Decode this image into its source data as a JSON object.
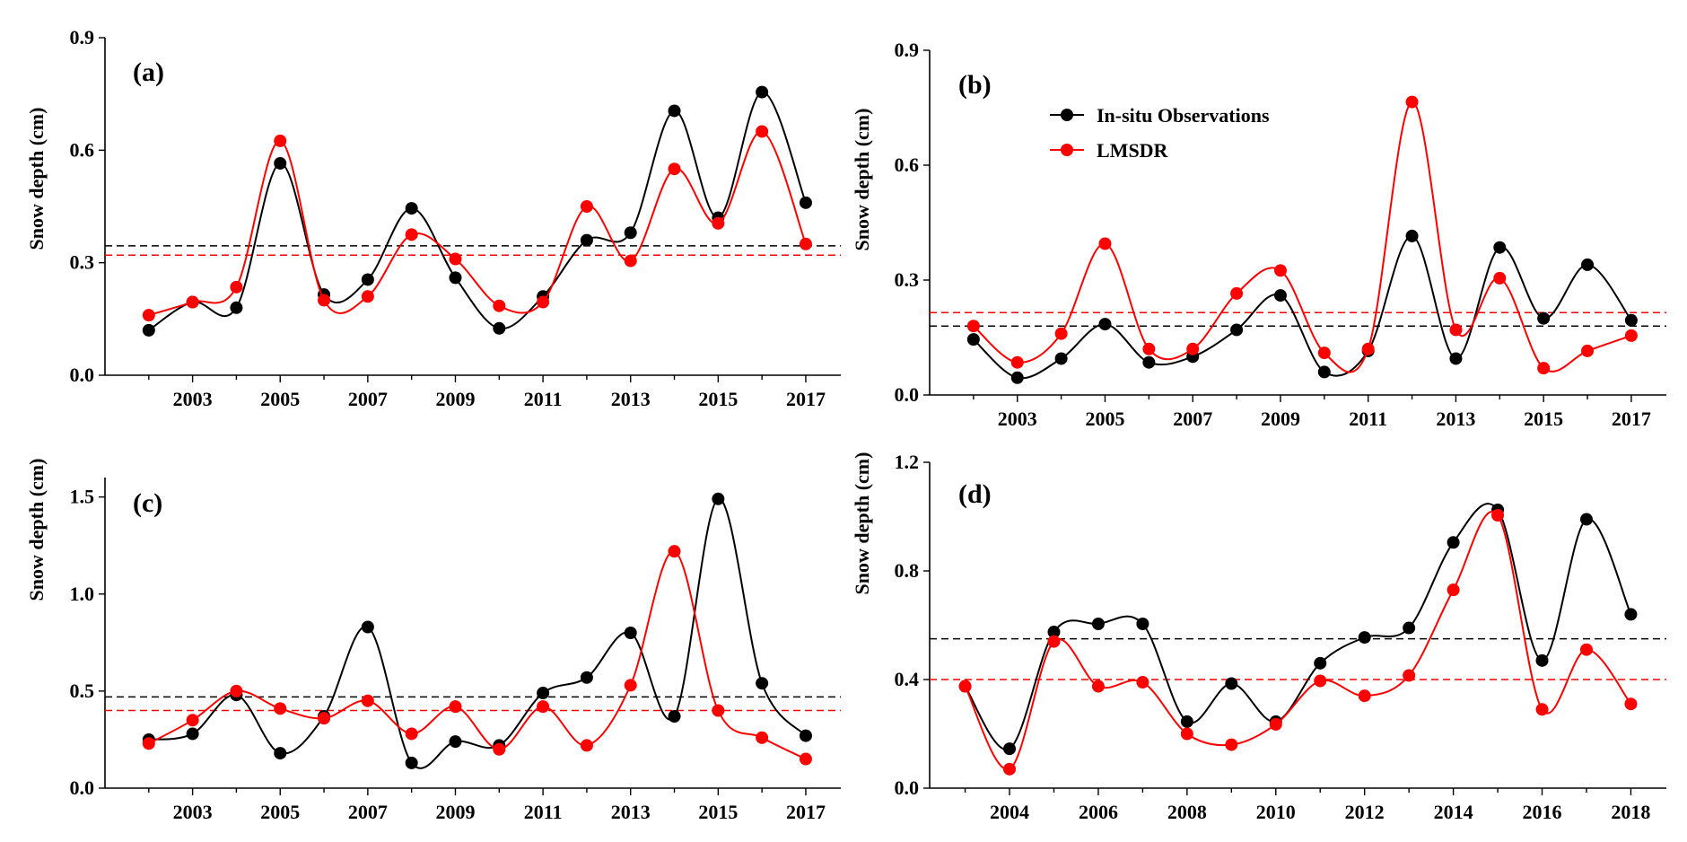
{
  "colors": {
    "observations": "#000000",
    "lmsdr": "#ff0000"
  },
  "legend": {
    "observations_label": "In-situ Observations",
    "lmsdr_label": "LMSDR"
  },
  "chart_data": [
    {
      "type": "line",
      "panel_label": "(a)",
      "ylabel": "Snow depth (cm)",
      "xlabel": "",
      "x": [
        2002,
        2003,
        2004,
        2005,
        2006,
        2007,
        2008,
        2009,
        2010,
        2011,
        2012,
        2013,
        2014,
        2015,
        2016,
        2017
      ],
      "xlim": [
        2001,
        2017.8
      ],
      "xticks": [
        2003,
        2005,
        2007,
        2009,
        2011,
        2013,
        2015,
        2017
      ],
      "xtick_labels": [
        "2003",
        "2005",
        "2007",
        "2009",
        "2011",
        "2013",
        "2015",
        "2017"
      ],
      "ylim": [
        0,
        0.9
      ],
      "yticks": [
        0,
        0.3,
        0.6,
        0.9
      ],
      "ytick_labels": [
        "0.0",
        "0.3",
        "0.6",
        "0.9"
      ],
      "series": [
        {
          "name": "In-situ Observations",
          "color": "#000000",
          "values": [
            0.12,
            0.195,
            0.18,
            0.565,
            0.215,
            0.255,
            0.445,
            0.26,
            0.125,
            0.21,
            0.36,
            0.38,
            0.705,
            0.42,
            0.755,
            0.46
          ]
        },
        {
          "name": "LMSDR",
          "color": "#ff0000",
          "values": [
            0.16,
            0.195,
            0.235,
            0.625,
            0.2,
            0.21,
            0.375,
            0.31,
            0.185,
            0.195,
            0.45,
            0.305,
            0.55,
            0.405,
            0.65,
            0.35
          ]
        }
      ],
      "reference_lines": [
        {
          "name": "In-situ Observations mean",
          "color": "#000000",
          "value": 0.345
        },
        {
          "name": "LMSDR mean",
          "color": "#ff0000",
          "value": 0.32
        }
      ]
    },
    {
      "type": "line",
      "panel_label": "(b)",
      "ylabel": "Snow depth (cm)",
      "xlabel": "",
      "x": [
        2002,
        2003,
        2004,
        2005,
        2006,
        2007,
        2008,
        2009,
        2010,
        2011,
        2012,
        2013,
        2014,
        2015,
        2016,
        2017
      ],
      "xlim": [
        2001,
        2017.8
      ],
      "xticks": [
        2003,
        2005,
        2007,
        2009,
        2011,
        2013,
        2015,
        2017
      ],
      "xtick_labels": [
        "2003",
        "2005",
        "2007",
        "2009",
        "2011",
        "2013",
        "2015",
        "2017"
      ],
      "ylim": [
        0,
        0.9
      ],
      "yticks": [
        0,
        0.3,
        0.6,
        0.9
      ],
      "ytick_labels": [
        "0.0",
        "0.3",
        "0.6",
        "0.9"
      ],
      "legend_position": "top-left",
      "series": [
        {
          "name": "In-situ Observations",
          "color": "#000000",
          "values": [
            0.145,
            0.045,
            0.095,
            0.185,
            0.085,
            0.1,
            0.17,
            0.26,
            0.06,
            0.115,
            0.415,
            0.095,
            0.385,
            0.2,
            0.34,
            0.195
          ]
        },
        {
          "name": "LMSDR",
          "color": "#ff0000",
          "values": [
            0.18,
            0.085,
            0.16,
            0.395,
            0.12,
            0.12,
            0.265,
            0.325,
            0.11,
            0.12,
            0.765,
            0.17,
            0.305,
            0.07,
            0.115,
            0.155
          ]
        }
      ],
      "reference_lines": [
        {
          "name": "In-situ Observations mean",
          "color": "#000000",
          "value": 0.18
        },
        {
          "name": "LMSDR mean",
          "color": "#ff0000",
          "value": 0.215
        }
      ]
    },
    {
      "type": "line",
      "panel_label": "(c)",
      "ylabel": "Snow depth (cm)",
      "xlabel": "",
      "x": [
        2002,
        2003,
        2004,
        2005,
        2006,
        2007,
        2008,
        2009,
        2010,
        2011,
        2012,
        2013,
        2014,
        2015,
        2016,
        2017
      ],
      "xlim": [
        2001,
        2017.8
      ],
      "xticks": [
        2003,
        2005,
        2007,
        2009,
        2011,
        2013,
        2015,
        2017
      ],
      "xtick_labels": [
        "2003",
        "2005",
        "2007",
        "2009",
        "2011",
        "2013",
        "2015",
        "2017"
      ],
      "ylim": [
        0,
        1.6
      ],
      "yticks": [
        0,
        0.5,
        1.0,
        1.5
      ],
      "ytick_labels": [
        "0.0",
        "0.5",
        "1.0",
        "1.5"
      ],
      "series": [
        {
          "name": "In-situ Observations",
          "color": "#000000",
          "values": [
            0.25,
            0.28,
            0.48,
            0.18,
            0.37,
            0.83,
            0.13,
            0.24,
            0.22,
            0.49,
            0.57,
            0.8,
            0.37,
            1.49,
            0.54,
            0.27
          ]
        },
        {
          "name": "LMSDR",
          "color": "#ff0000",
          "values": [
            0.23,
            0.35,
            0.5,
            0.41,
            0.36,
            0.45,
            0.28,
            0.42,
            0.2,
            0.42,
            0.22,
            0.53,
            1.22,
            0.4,
            0.26,
            0.15
          ]
        }
      ],
      "reference_lines": [
        {
          "name": "In-situ Observations mean",
          "color": "#000000",
          "value": 0.47
        },
        {
          "name": "LMSDR mean",
          "color": "#ff0000",
          "value": 0.4
        }
      ]
    },
    {
      "type": "line",
      "panel_label": "(d)",
      "ylabel": "Snow depth (cm)",
      "xlabel": "",
      "x": [
        2003,
        2004,
        2005,
        2006,
        2007,
        2008,
        2009,
        2010,
        2011,
        2012,
        2013,
        2014,
        2015,
        2016,
        2017,
        2018
      ],
      "xlim": [
        2002.2,
        2018.8
      ],
      "xticks": [
        2004,
        2006,
        2008,
        2010,
        2012,
        2014,
        2016,
        2018
      ],
      "xtick_labels": [
        "2004",
        "2006",
        "2008",
        "2010",
        "2012",
        "2014",
        "2016",
        "2018"
      ],
      "ylim": [
        0,
        1.2
      ],
      "yticks": [
        0,
        0.4,
        0.8,
        1.2
      ],
      "ytick_labels": [
        "0.0",
        "0.4",
        "0.8",
        "1.2"
      ],
      "series": [
        {
          "name": "In-situ Observations",
          "color": "#000000",
          "values": [
            0.375,
            0.145,
            0.575,
            0.605,
            0.605,
            0.245,
            0.385,
            0.245,
            0.46,
            0.555,
            0.59,
            0.905,
            1.025,
            0.47,
            0.99,
            0.64
          ]
        },
        {
          "name": "LMSDR",
          "color": "#ff0000",
          "values": [
            0.375,
            0.07,
            0.54,
            0.375,
            0.39,
            0.2,
            0.16,
            0.235,
            0.395,
            0.34,
            0.415,
            0.73,
            1.005,
            0.29,
            0.51,
            0.31
          ]
        }
      ],
      "reference_lines": [
        {
          "name": "In-situ Observations mean",
          "color": "#000000",
          "value": 0.55
        },
        {
          "name": "LMSDR mean",
          "color": "#ff0000",
          "value": 0.4
        }
      ]
    }
  ]
}
